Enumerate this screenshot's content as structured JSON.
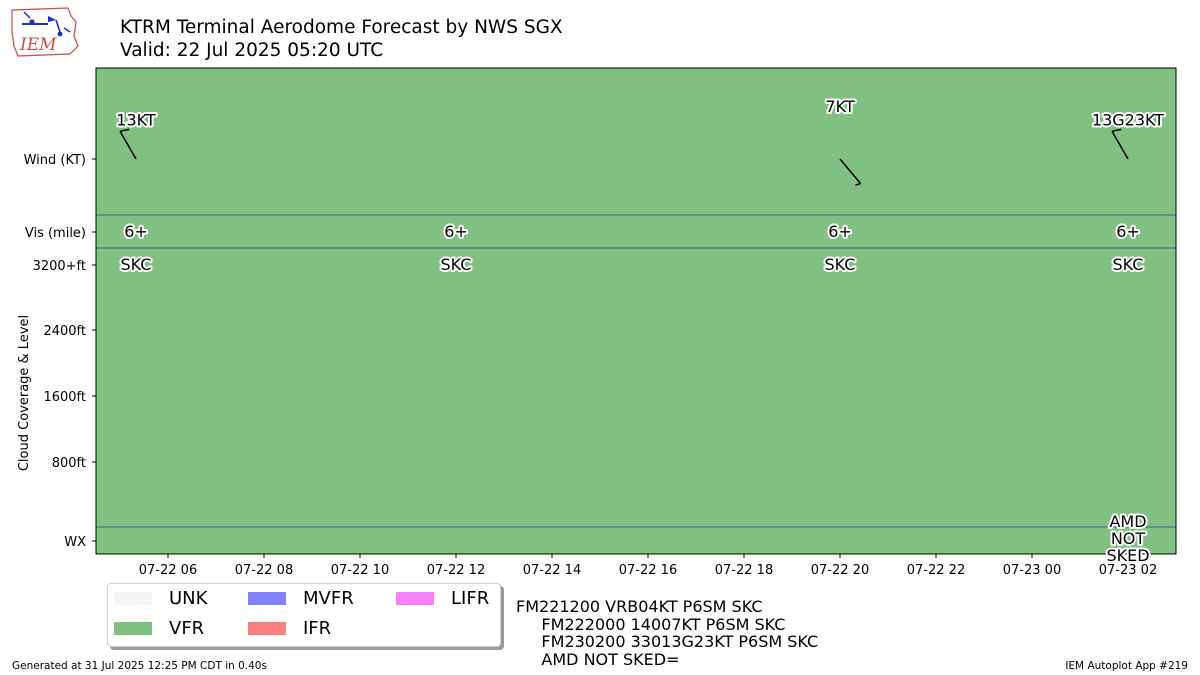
{
  "header": {
    "title_line1": "KTRM Terminal Aerodome Forecast by NWS SGX",
    "title_line2": "Valid: 22 Jul 2025 05:20 UTC",
    "logo_text": "IEM"
  },
  "chart_data": {
    "type": "timeline",
    "ylabels": [
      "Wind (KT)",
      "Vis (mile)",
      "3200+ft",
      "2400ft",
      "1600ft",
      "800ft",
      "WX"
    ],
    "ylabel": "Cloud Coverage & Level",
    "xlim": [
      "2025-07-22 04:30",
      "2025-07-23 03:00"
    ],
    "xticks": [
      "07-22 06",
      "07-22 08",
      "07-22 10",
      "07-22 12",
      "07-22 14",
      "07-22 16",
      "07-22 18",
      "07-22 20",
      "07-22 22",
      "07-23 00",
      "07-23 02"
    ],
    "background_category": "VFR",
    "winds": [
      {
        "time": "2025-07-22 05:20",
        "label": "13KT",
        "direction_deg": 330,
        "speed_kt": 13
      },
      {
        "time": "2025-07-22 20:00",
        "label": "7KT",
        "direction_deg": 140,
        "speed_kt": 7
      },
      {
        "time": "2025-07-23 02:00",
        "label": "13G23KT",
        "direction_deg": 330,
        "speed_kt": 13,
        "gust_kt": 23
      }
    ],
    "visibility": [
      {
        "time": "2025-07-22 05:20",
        "label": "6+"
      },
      {
        "time": "2025-07-22 12:00",
        "label": "6+"
      },
      {
        "time": "2025-07-22 20:00",
        "label": "6+"
      },
      {
        "time": "2025-07-23 02:00",
        "label": "6+"
      }
    ],
    "clouds": [
      {
        "time": "2025-07-22 05:20",
        "label": "SKC"
      },
      {
        "time": "2025-07-22 12:00",
        "label": "SKC"
      },
      {
        "time": "2025-07-22 20:00",
        "label": "SKC"
      },
      {
        "time": "2025-07-23 02:00",
        "label": "SKC"
      }
    ],
    "wx": [
      {
        "time": "2025-07-23 02:00",
        "lines": [
          "AMD",
          "NOT",
          "SKED"
        ]
      }
    ]
  },
  "legend": [
    {
      "label": "UNK",
      "color": "#f5f5f5"
    },
    {
      "label": "VFR",
      "color": "#80c080"
    },
    {
      "label": "MVFR",
      "color": "#8080f8"
    },
    {
      "label": "IFR",
      "color": "#f88080"
    },
    {
      "label": "LIFR",
      "color": "#f880f8"
    }
  ],
  "taf_text": "FM221200 VRB04KT P6SM SKC\n     FM222000 14007KT P6SM SKC\n     FM230200 33013G23KT P6SM SKC\n     AMD NOT SKED=",
  "footer": {
    "generated": "Generated at 31 Jul 2025 12:25 PM CDT in 0.40s",
    "app": "IEM Autoplot App #219"
  },
  "colors": {
    "vfr_fill": "#80c080",
    "separator": "#3a5f8a",
    "wind_barb": "#000000"
  }
}
